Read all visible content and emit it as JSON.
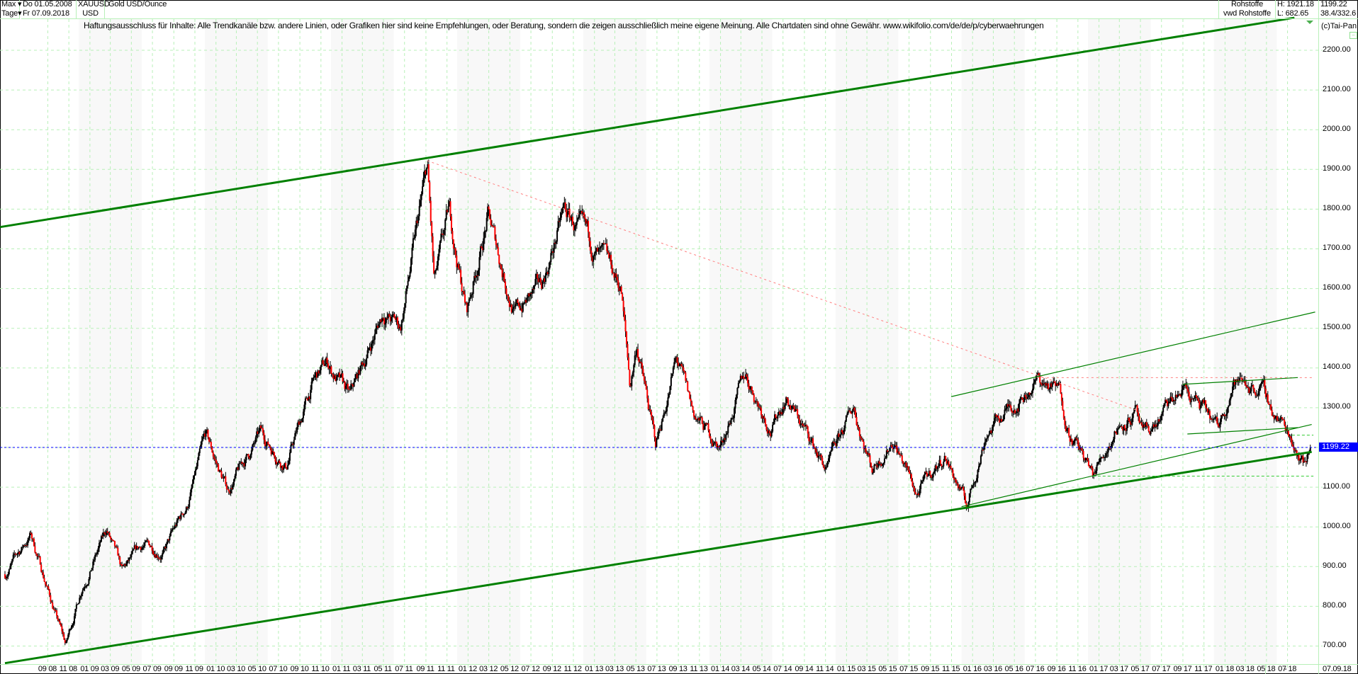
{
  "header": {
    "period_label": "Max",
    "interval_label": "Tage",
    "start_date": "Do 01.05.2008",
    "end_date": "Fr 07.09.2018",
    "symbol": "XAUUSD",
    "currency": "USD",
    "instrument_name": "Gold USD/Ounce",
    "category": "Rohstoffe",
    "source": "vwd Rohstoffe",
    "high": "H: 1921.18",
    "low": "L: 682.65",
    "last": "1199.22",
    "extra": "38.4/332.6",
    "copyright": "(c)Tai-Pan"
  },
  "disclaimer": "Haftungsausschluss für Inhalte: Alle Trendkanäle bzw. andere Linien, oder Grafiken hier sind keine Empfehlungen, oder Beratung, sondern die zeigen ausschließlich meine eigene Meinung. Alle Chartdaten sind ohne Gewähr.  www.wikifolio.com/de/de/p/cyberwaehrungen",
  "colors": {
    "up": "#000000",
    "down": "#ff0000",
    "grid": "#b8f0b8",
    "channel": "#008000",
    "current_line": "#0000ff",
    "resistance_dotted": "#ff8080",
    "band": "#f8f8f8"
  },
  "chart_data": {
    "type": "candlestick",
    "title": "Gold USD/Ounce",
    "xlim": [
      "2008-05-01",
      "2018-09-07"
    ],
    "ylim": [
      680,
      2280
    ],
    "grid": true,
    "y_ticks": [
      "700.00",
      "800.00",
      "900.00",
      "1000.00",
      "1100.00",
      "1200.00",
      "1300.00",
      "1400.00",
      "1500.00",
      "1600.00",
      "1700.00",
      "1800.00",
      "1900.00",
      "2000.00",
      "2100.00",
      "2200.00"
    ],
    "x_ticks": [
      "09 08",
      "11 08",
      "01 09",
      "03 09",
      "05 09",
      "07 09",
      "09 09",
      "11 09",
      "01 10",
      "03 10",
      "05 10",
      "07 10",
      "09 10",
      "11 10",
      "01 11",
      "03 11",
      "05 11",
      "07 11",
      "09 11",
      "11 11",
      "01 12",
      "03 12",
      "05 12",
      "07 12",
      "09 12",
      "11 12",
      "01 13",
      "03 13",
      "05 13",
      "07 13",
      "09 13",
      "11 13",
      "01 14",
      "03 14",
      "05 14",
      "07 14",
      "09 14",
      "11 14",
      "01 15",
      "03 15",
      "05 15",
      "07 15",
      "09 15",
      "11 15",
      "01 16",
      "03 16",
      "05 16",
      "07 16",
      "09 16",
      "11 16",
      "01 17",
      "03 17",
      "05 17",
      "07 17",
      "09 17",
      "11 17",
      "01 18",
      "03 18",
      "05 18",
      "07 18"
    ],
    "x_end_labels": [
      "-",
      "07.09.18"
    ],
    "current_value": 1199.22,
    "approx_close_path": [
      [
        "2008-05-01",
        880
      ],
      [
        "2008-07-15",
        980
      ],
      [
        "2008-09-10",
        820
      ],
      [
        "2008-10-24",
        700
      ],
      [
        "2008-12-10",
        850
      ],
      [
        "2009-02-20",
        990
      ],
      [
        "2009-04-05",
        880
      ],
      [
        "2009-06-05",
        950
      ],
      [
        "2009-08-05",
        940
      ],
      [
        "2009-10-10",
        1050
      ],
      [
        "2009-12-03",
        1220
      ],
      [
        "2010-02-05",
        1090
      ],
      [
        "2010-05-10",
        1230
      ],
      [
        "2010-07-25",
        1160
      ],
      [
        "2010-10-10",
        1360
      ],
      [
        "2010-11-20",
        1410
      ],
      [
        "2011-01-25",
        1320
      ],
      [
        "2011-05-01",
        1540
      ],
      [
        "2011-06-20",
        1500
      ],
      [
        "2011-09-06",
        1900
      ],
      [
        "2011-09-26",
        1600
      ],
      [
        "2011-11-08",
        1780
      ],
      [
        "2011-12-29",
        1540
      ],
      [
        "2012-02-28",
        1780
      ],
      [
        "2012-05-16",
        1540
      ],
      [
        "2012-08-01",
        1600
      ],
      [
        "2012-10-05",
        1790
      ],
      [
        "2013-01-10",
        1680
      ],
      [
        "2013-03-20",
        1600
      ],
      [
        "2013-04-15",
        1350
      ],
      [
        "2013-05-05",
        1460
      ],
      [
        "2013-06-28",
        1200
      ],
      [
        "2013-08-27",
        1420
      ],
      [
        "2013-10-15",
        1280
      ],
      [
        "2013-12-31",
        1200
      ],
      [
        "2014-03-15",
        1380
      ],
      [
        "2014-05-30",
        1250
      ],
      [
        "2014-07-10",
        1330
      ],
      [
        "2014-11-06",
        1140
      ],
      [
        "2015-01-22",
        1300
      ],
      [
        "2015-03-17",
        1150
      ],
      [
        "2015-05-18",
        1225
      ],
      [
        "2015-07-24",
        1080
      ],
      [
        "2015-10-15",
        1180
      ],
      [
        "2015-12-17",
        1050
      ],
      [
        "2016-02-11",
        1240
      ],
      [
        "2016-07-06",
        1370
      ],
      [
        "2016-09-08",
        1340
      ],
      [
        "2016-10-07",
        1250
      ],
      [
        "2016-12-15",
        1125
      ],
      [
        "2017-02-27",
        1260
      ],
      [
        "2017-04-17",
        1290
      ],
      [
        "2017-05-09",
        1215
      ],
      [
        "2017-09-08",
        1350
      ],
      [
        "2017-12-12",
        1240
      ],
      [
        "2018-01-25",
        1365
      ],
      [
        "2018-04-11",
        1355
      ],
      [
        "2018-05-21",
        1290
      ],
      [
        "2018-07-20",
        1220
      ],
      [
        "2018-08-16",
        1165
      ],
      [
        "2018-09-07",
        1199.22
      ]
    ],
    "lines": [
      {
        "kind": "channel-upper",
        "style": "solid-thick",
        "from": [
          "2008-04-17",
          1754
        ],
        "to": [
          "2018-07-22",
          2281
        ]
      },
      {
        "kind": "channel-lower",
        "style": "solid-thick",
        "from": [
          "2008-05-01",
          656
        ],
        "to": [
          "2018-09-10",
          1188
        ]
      },
      {
        "kind": "downtrend",
        "style": "dotted-red",
        "from": [
          "2011-09-06",
          1921
        ],
        "to": [
          "2017-05-01",
          1290
        ]
      },
      {
        "kind": "thin-channel-upper",
        "style": "solid-thin",
        "from": [
          "2015-11-01",
          1327
        ],
        "to": [
          "2018-09-20",
          1540
        ]
      },
      {
        "kind": "thin-channel-lower",
        "style": "solid-thin",
        "from": [
          "2015-12-01",
          1050
        ],
        "to": [
          "2018-09-10",
          1257
        ]
      },
      {
        "kind": "resistance",
        "style": "dotted-red",
        "from": [
          "2016-07-06",
          1375
        ],
        "to": [
          "2018-09-15",
          1375
        ]
      },
      {
        "kind": "range-top",
        "style": "solid-thin",
        "from": [
          "2017-09-01",
          1358
        ],
        "to": [
          "2018-08-01",
          1375
        ]
      },
      {
        "kind": "range-bottom",
        "style": "solid-thin",
        "from": [
          "2017-09-15",
          1233
        ],
        "to": [
          "2018-08-01",
          1249
        ]
      },
      {
        "kind": "support",
        "style": "dashed-green",
        "from": [
          "2016-12-15",
          1127
        ],
        "to": [
          "2018-09-15",
          1127
        ]
      },
      {
        "kind": "short-support",
        "style": "dashed-green",
        "from": [
          "2018-07-15",
          1230
        ],
        "to": [
          "2018-09-15",
          1230
        ]
      }
    ]
  }
}
